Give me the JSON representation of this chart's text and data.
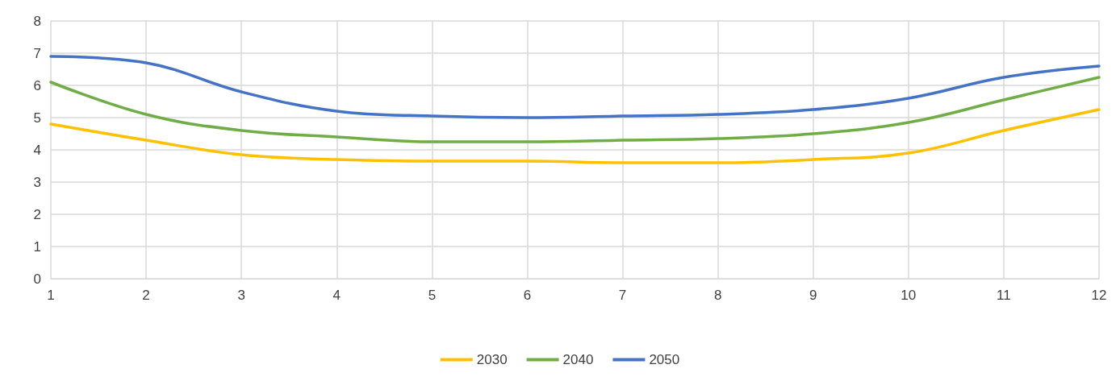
{
  "chart_data": {
    "type": "line",
    "x": [
      1,
      2,
      3,
      4,
      5,
      6,
      7,
      8,
      9,
      10,
      11,
      12
    ],
    "series": [
      {
        "name": "2030",
        "color": "#ffc000",
        "values": [
          4.8,
          4.3,
          3.85,
          3.7,
          3.65,
          3.65,
          3.6,
          3.6,
          3.7,
          3.9,
          4.6,
          5.25
        ]
      },
      {
        "name": "2040",
        "color": "#70ad47",
        "values": [
          6.1,
          5.1,
          4.6,
          4.4,
          4.25,
          4.25,
          4.3,
          4.35,
          4.5,
          4.85,
          5.55,
          6.25
        ]
      },
      {
        "name": "2050",
        "color": "#4472c4",
        "values": [
          6.9,
          6.7,
          5.8,
          5.2,
          5.05,
          5.0,
          5.05,
          5.1,
          5.25,
          5.6,
          6.25,
          6.6
        ]
      }
    ],
    "xlim": [
      1,
      12
    ],
    "xticks": [
      1,
      2,
      3,
      4,
      5,
      6,
      7,
      8,
      9,
      10,
      11,
      12
    ],
    "ylim": [
      0,
      8
    ],
    "yticks": [
      0,
      1,
      2,
      3,
      4,
      5,
      6,
      7,
      8
    ],
    "grid": true,
    "legend": "bottom",
    "marker": "none",
    "line_style": "solid"
  }
}
